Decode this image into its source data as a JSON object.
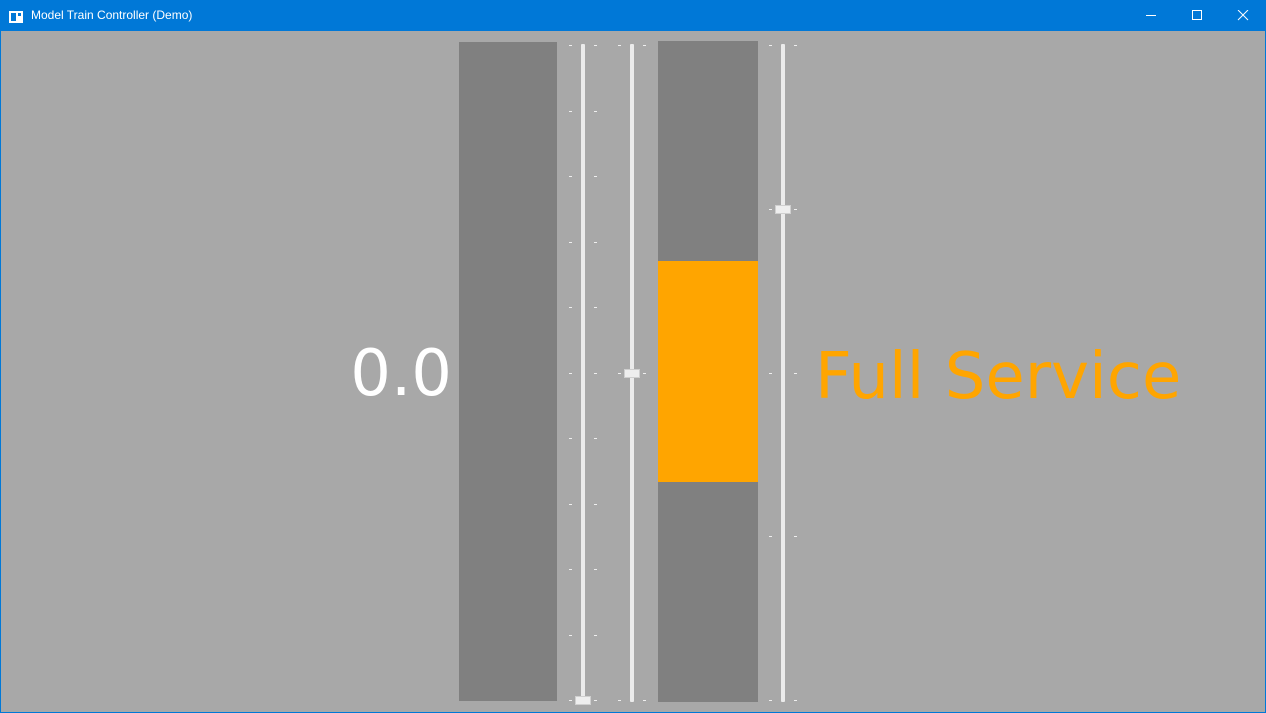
{
  "window": {
    "title": "Model Train Controller (Demo)",
    "controls": {
      "minimize": "minimize",
      "maximize": "maximize",
      "close": "close"
    }
  },
  "throttle": {
    "speed_display": "0.0",
    "speed_bar_fill_fraction": 0.0,
    "throttle_slider_value": 0.0,
    "tick_count": 11
  },
  "reverser": {
    "slider_value": 0.5,
    "tick_count": 3
  },
  "brake": {
    "state_label": "Full Service",
    "indicator_range": [
      0.333,
      0.667
    ],
    "slider_value": 0.75,
    "tick_count": 5
  },
  "colors": {
    "titlebar": "#0078d7",
    "background": "#a8a8a8",
    "bar": "#808080",
    "accent": "#ffa500",
    "text": "#ffffff"
  }
}
